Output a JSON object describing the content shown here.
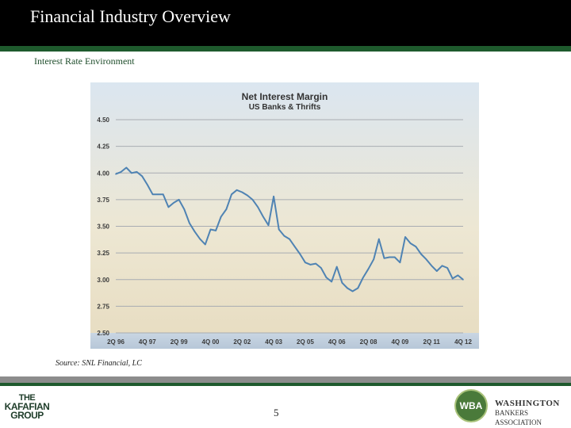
{
  "slide": {
    "title": "Financial Industry Overview",
    "subtitle": "Interest Rate Environment",
    "source": "Source: SNL Financial, LC",
    "page_number": "5"
  },
  "logos": {
    "left": {
      "line1": "THE",
      "line2": "KAFAFIAN",
      "line3": "GROUP"
    },
    "right": {
      "seal": "WBA",
      "line1": "WASHINGTON",
      "line2": "BANKERS ASSOCIATION"
    }
  },
  "colors": {
    "title_bar": "#000000",
    "rule_green": "#1e5a2d",
    "line": "#4f83b3"
  },
  "chart_data": {
    "type": "line",
    "title": "Net Interest Margin",
    "subtitle": "US Banks & Thrifts",
    "y_tick_labels": [
      "4.50",
      "4.25",
      "4.00",
      "3.75",
      "3.50",
      "3.25",
      "3.00",
      "2.75",
      "2.50"
    ],
    "x_tick_labels": [
      "2Q 96",
      "4Q 97",
      "2Q 99",
      "4Q 00",
      "2Q 02",
      "4Q 03",
      "2Q 05",
      "4Q 06",
      "2Q 08",
      "4Q 09",
      "2Q 11",
      "4Q 12"
    ],
    "ylim": [
      2.5,
      4.5
    ],
    "grid": true,
    "series": [
      {
        "values": [
          3.99,
          4.01,
          4.05,
          4.0,
          4.01,
          3.97,
          3.89,
          3.8,
          3.8,
          3.8,
          3.68,
          3.72,
          3.75,
          3.66,
          3.53,
          3.45,
          3.38,
          3.33,
          3.47,
          3.46,
          3.59,
          3.66,
          3.8,
          3.84,
          3.82,
          3.79,
          3.75,
          3.68,
          3.59,
          3.51,
          3.78,
          3.47,
          3.41,
          3.38,
          3.31,
          3.24,
          3.16,
          3.14,
          3.15,
          3.11,
          3.02,
          2.98,
          3.12,
          2.97,
          2.92,
          2.89,
          2.92,
          3.02,
          3.1,
          3.19,
          3.38,
          3.2,
          3.21,
          3.21,
          3.16,
          3.4,
          3.34,
          3.31,
          3.24,
          3.19,
          3.13,
          3.08,
          3.13,
          3.11,
          3.01,
          3.04,
          3.0
        ]
      }
    ]
  }
}
